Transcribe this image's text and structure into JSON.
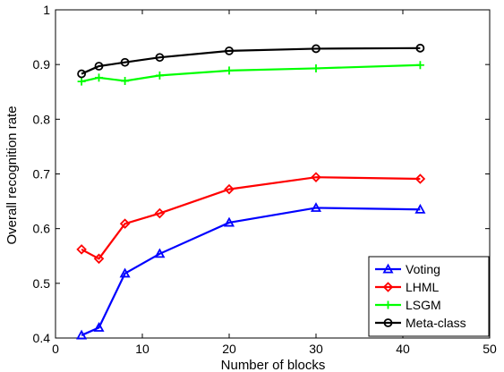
{
  "chart_data": {
    "type": "line",
    "title": "",
    "xlabel": "Number of blocks",
    "ylabel": "Overall recognition rate",
    "xlim": [
      0,
      50
    ],
    "ylim": [
      0.4,
      1
    ],
    "xticks": [
      0,
      10,
      20,
      30,
      40,
      50
    ],
    "yticks": [
      0.4,
      0.5,
      0.6,
      0.7,
      0.8,
      0.9,
      1
    ],
    "grid": false,
    "legend_position": "bottom-right",
    "x": [
      3,
      5,
      8,
      12,
      20,
      30,
      42
    ],
    "series": [
      {
        "name": "Voting",
        "color": "#0000ff",
        "marker": "triangle",
        "values": [
          0.405,
          0.419,
          0.518,
          0.554,
          0.611,
          0.638,
          0.635
        ]
      },
      {
        "name": "LHML",
        "color": "#ff0000",
        "marker": "diamond",
        "values": [
          0.562,
          0.545,
          0.609,
          0.628,
          0.672,
          0.694,
          0.691
        ]
      },
      {
        "name": "LSGM",
        "color": "#00ff00",
        "marker": "plus",
        "values": [
          0.869,
          0.876,
          0.87,
          0.88,
          0.889,
          0.893,
          0.899
        ]
      },
      {
        "name": "Meta-class",
        "color": "#000000",
        "marker": "circle",
        "values": [
          0.883,
          0.897,
          0.904,
          0.913,
          0.925,
          0.929,
          0.93
        ]
      }
    ]
  }
}
